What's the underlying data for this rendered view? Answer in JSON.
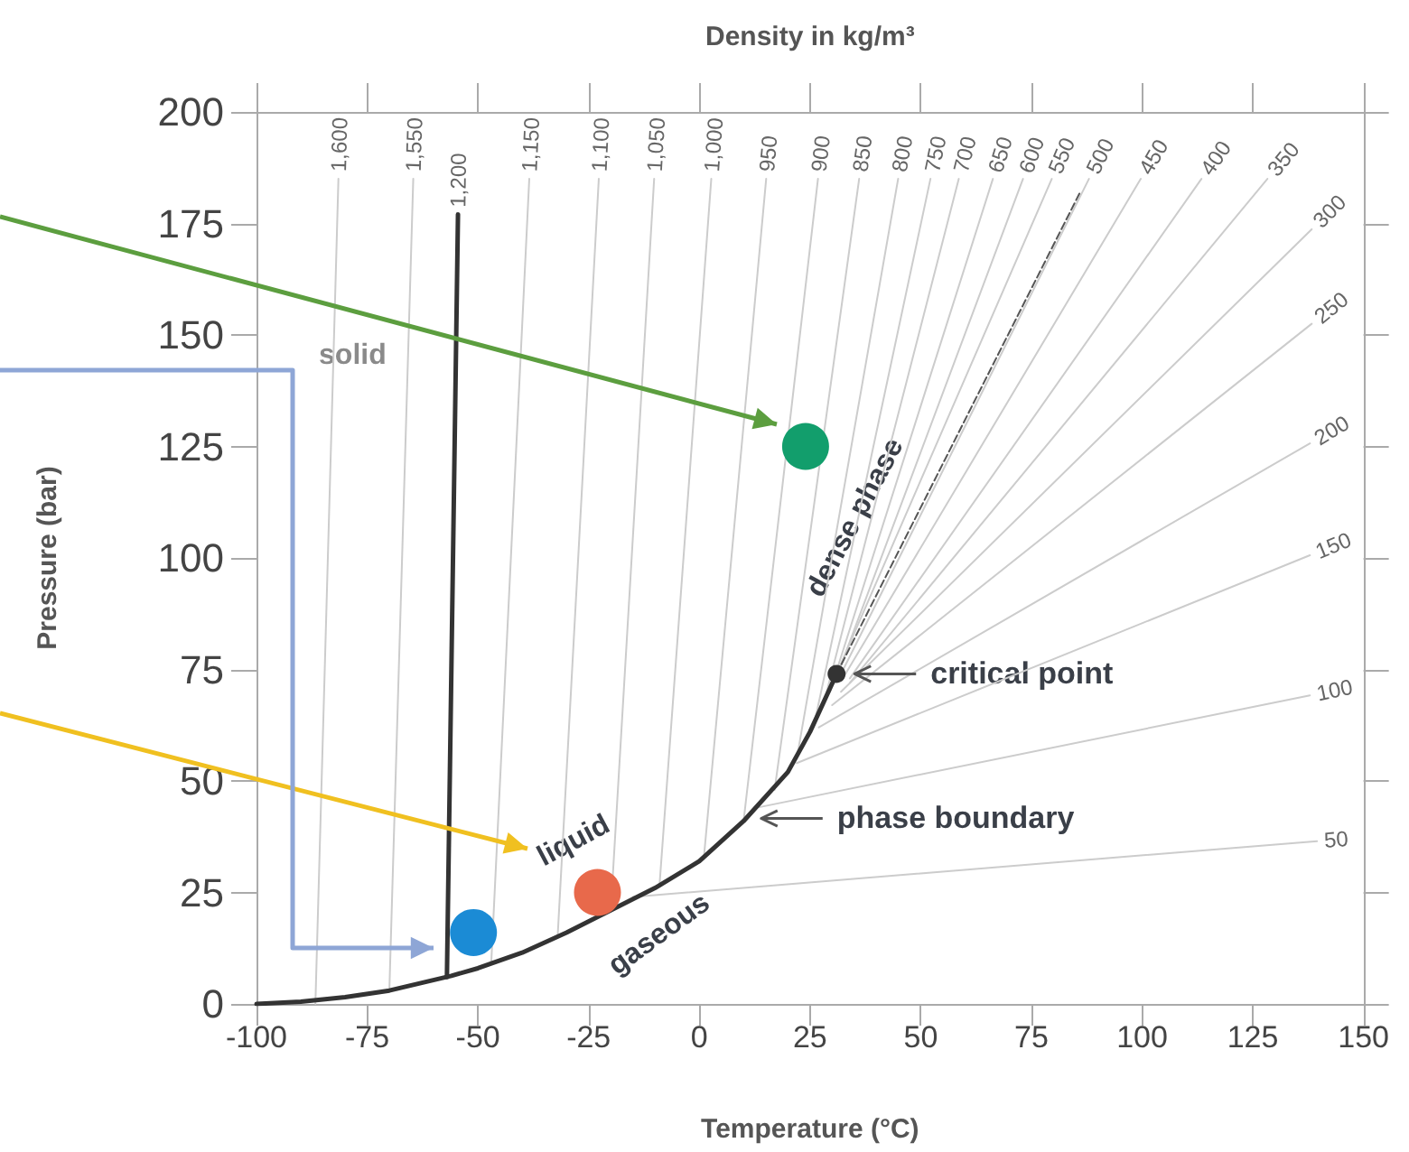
{
  "chart_data": {
    "type": "line",
    "xlabel": "Temperature (°C)",
    "ylabel": "Pressure (bar)",
    "x2label": "Density in kg/m³",
    "xlim": [
      -100,
      150
    ],
    "xticks": [
      -100,
      -75,
      -50,
      -25,
      0,
      25,
      50,
      75,
      100,
      125,
      150
    ],
    "ylim": [
      0,
      200
    ],
    "yticks": [
      0,
      25,
      50,
      75,
      100,
      125,
      150,
      175,
      200
    ],
    "marker": "none",
    "series": [
      {
        "name": "1,600",
        "color": "#cccccc",
        "x": [
          -86.7,
          -81.5
        ],
        "values": [
          0,
          185
        ]
      },
      {
        "name": "1,550",
        "color": "#cccccc",
        "x": [
          -70,
          -64.6
        ],
        "values": [
          3,
          185
        ]
      },
      {
        "name": "1,150",
        "color": "#cccccc",
        "x": [
          -47,
          -38.4
        ],
        "values": [
          9,
          185
        ]
      },
      {
        "name": "1,100",
        "color": "#cccccc",
        "x": [
          -32,
          -22.7
        ],
        "values": [
          15,
          185
        ]
      },
      {
        "name": "1,050",
        "color": "#cccccc",
        "x": [
          -20,
          -10.2
        ],
        "values": [
          21,
          185
        ]
      },
      {
        "name": "1,000",
        "color": "#cccccc",
        "x": [
          -9,
          2.7
        ],
        "values": [
          26.5,
          185
        ]
      },
      {
        "name": "950",
        "color": "#cccccc",
        "x": [
          1,
          15.1
        ],
        "values": [
          32.5,
          185
        ]
      },
      {
        "name": "900",
        "color": "#cccccc",
        "x": [
          10,
          26.8
        ],
        "values": [
          41,
          185
        ]
      },
      {
        "name": "850",
        "color": "#cccccc",
        "x": [
          17,
          36.1
        ],
        "values": [
          48,
          185
        ]
      },
      {
        "name": "800",
        "color": "#cccccc",
        "x": [
          22,
          44.9
        ],
        "values": [
          55,
          185
        ]
      },
      {
        "name": "750",
        "color": "#cccccc",
        "x": [
          26,
          52.2
        ],
        "values": [
          63,
          185
        ]
      },
      {
        "name": "700",
        "color": "#cccccc",
        "x": [
          28,
          58.6
        ],
        "values": [
          67,
          185
        ]
      },
      {
        "name": "650",
        "color": "#cccccc",
        "x": [
          29.5,
          66.3
        ],
        "values": [
          70,
          185
        ]
      },
      {
        "name": "600",
        "color": "#cccccc",
        "x": [
          30.5,
          73.1
        ],
        "values": [
          72,
          185
        ]
      },
      {
        "name": "550",
        "color": "#cccccc",
        "x": [
          31,
          79.6
        ],
        "values": [
          74,
          185
        ]
      },
      {
        "name": "500",
        "color": "#cccccc",
        "x": [
          32,
          88
        ],
        "values": [
          74,
          185
        ]
      },
      {
        "name": "450",
        "color": "#cccccc",
        "x": [
          33,
          99.7
        ],
        "values": [
          74,
          185
        ]
      },
      {
        "name": "400",
        "color": "#cccccc",
        "x": [
          34,
          113.4
        ],
        "values": [
          73,
          185
        ]
      },
      {
        "name": "350",
        "color": "#cccccc",
        "x": [
          34,
          128.3
        ],
        "values": [
          72,
          185
        ]
      },
      {
        "name": "300",
        "color": "#cccccc",
        "x": [
          32,
          138.3
        ],
        "values": [
          70,
          173.7
        ]
      },
      {
        "name": "250",
        "color": "#cccccc",
        "x": [
          30,
          138.3
        ],
        "values": [
          67,
          152.5
        ]
      },
      {
        "name": "200",
        "color": "#cccccc",
        "x": [
          27,
          137.9
        ],
        "values": [
          62,
          125.7
        ]
      },
      {
        "name": "150",
        "color": "#cccccc",
        "x": [
          22,
          137.9
        ],
        "values": [
          54,
          100.6
        ]
      },
      {
        "name": "100",
        "color": "#cccccc",
        "x": [
          13,
          137.9
        ],
        "values": [
          44,
          69.2
        ]
      },
      {
        "name": "50",
        "color": "#cccccc",
        "x": [
          -15,
          139.5
        ],
        "values": [
          24,
          36.5
        ]
      },
      {
        "color": "#555555",
        "line_style": "dashed",
        "x": [
          31,
          86
        ],
        "values": [
          74,
          182
        ]
      },
      {
        "name": "1,200",
        "color": "#333333",
        "x": [
          -57,
          -54.5
        ],
        "values": [
          6,
          177
        ]
      },
      {
        "color": "#333333",
        "x": [
          -100,
          -90,
          -80,
          -70,
          -56,
          -50,
          -40,
          -30,
          -20,
          -10,
          0,
          10,
          20,
          25,
          31
        ],
        "values": [
          0,
          0.5,
          1.5,
          3,
          6.3,
          8,
          11.5,
          16,
          21,
          26,
          32,
          41,
          52,
          61,
          74
        ]
      },
      {
        "type": "scatter",
        "marker": "circle",
        "color": "#333333",
        "x": [
          31
        ],
        "values": [
          74
        ]
      },
      {
        "type": "scatter",
        "marker": "circle",
        "color": "#129e6c",
        "x": [
          24
        ],
        "values": [
          125
        ]
      },
      {
        "type": "scatter",
        "marker": "circle",
        "color": "#e8694b",
        "x": [
          -23
        ],
        "values": [
          25
        ]
      },
      {
        "type": "scatter",
        "marker": "circle",
        "color": "#1b8bd5",
        "x": [
          -51
        ],
        "values": [
          16
        ]
      }
    ],
    "annotations": [
      "solid",
      "liquid",
      "gaseous",
      "dense phase",
      "critical point",
      "phase boundary"
    ]
  }
}
